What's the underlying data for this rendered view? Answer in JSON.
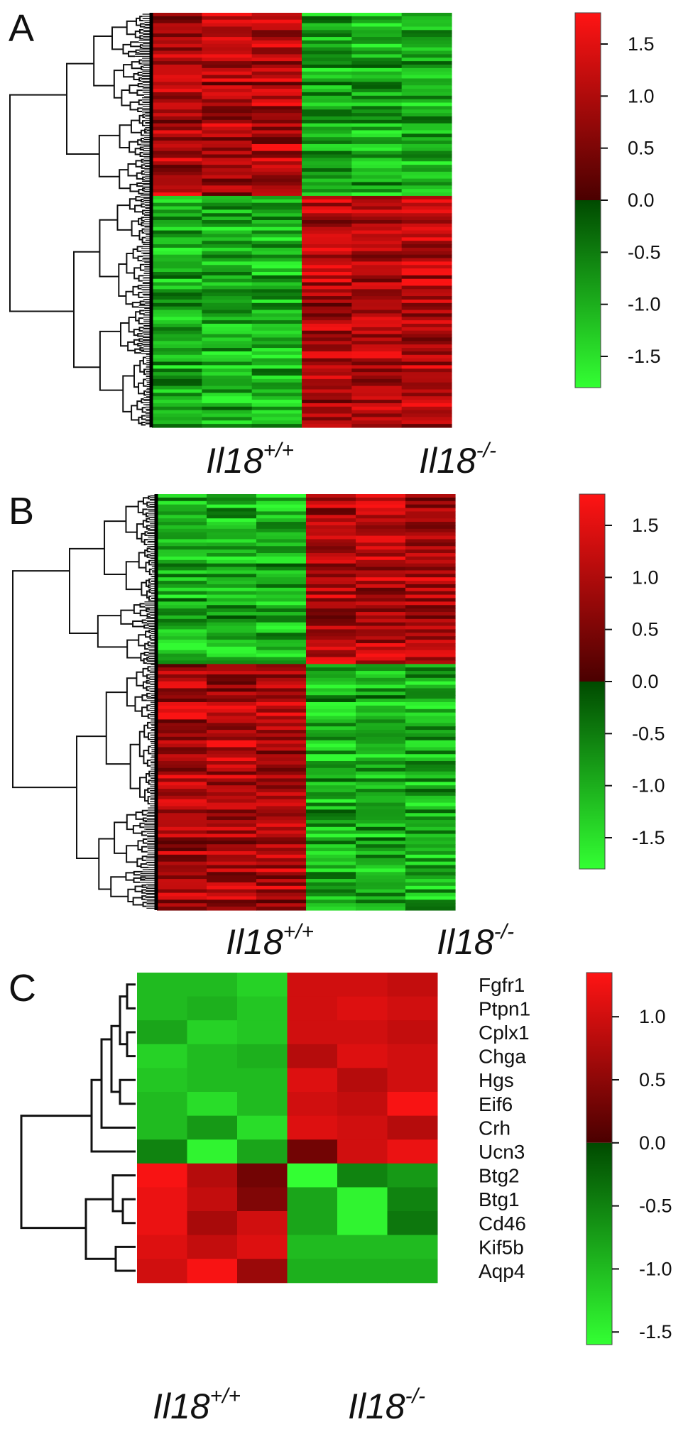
{
  "chart_data": [
    {
      "type": "heatmap",
      "panel": "A",
      "columns": 6,
      "rows": 120,
      "split_fraction": 0.44,
      "pattern": {
        "top_block": [
          "up",
          "up",
          "up",
          "down",
          "down",
          "down"
        ],
        "bottom_block": [
          "down",
          "down",
          "down",
          "up",
          "up",
          "up"
        ]
      },
      "groups": [
        {
          "main": "Il18",
          "sup": "+/+"
        },
        {
          "main": "Il18",
          "sup": "-/-"
        }
      ],
      "colorbar": {
        "range": [
          -1.8,
          1.8
        ],
        "ticks": [
          "1.5",
          "1.0",
          "0.5",
          "0.0",
          "-0.5",
          "-1.0",
          "-1.5"
        ],
        "tick_values": [
          1.5,
          1.0,
          0.5,
          0.0,
          -0.5,
          -1.0,
          -1.5
        ],
        "colors": {
          "high": "#ff1414",
          "mid_high": "#4a0000",
          "mid_low": "#004a00",
          "low": "#33ff33"
        }
      }
    },
    {
      "type": "heatmap",
      "panel": "B",
      "columns": 6,
      "rows": 120,
      "split_fraction": 0.41,
      "pattern": {
        "top_block": [
          "down",
          "down",
          "down",
          "up",
          "up",
          "up"
        ],
        "bottom_block": [
          "up",
          "up",
          "up",
          "down",
          "down",
          "down"
        ]
      },
      "groups": [
        {
          "main": "Il18",
          "sup": "+/+"
        },
        {
          "main": "Il18",
          "sup": "-/-"
        }
      ],
      "colorbar": {
        "range": [
          -1.8,
          1.8
        ],
        "ticks": [
          "1.5",
          "1.0",
          "0.5",
          "0.0",
          "-0.5",
          "-1.0",
          "-1.5"
        ],
        "tick_values": [
          1.5,
          1.0,
          0.5,
          0.0,
          -0.5,
          -1.0,
          -1.5
        ],
        "colors": {
          "high": "#ff1414",
          "mid_high": "#4a0000",
          "mid_low": "#004a00",
          "low": "#33ff33"
        }
      }
    },
    {
      "type": "heatmap",
      "panel": "C",
      "genes": [
        "Fgfr1",
        "Ptpn1",
        "Cplx1",
        "Chga",
        "Hgs",
        "Eif6",
        "Crh",
        "Ucn3",
        "Btg2",
        "Btg1",
        "Cd46",
        "Kif5b",
        "Aqp4"
      ],
      "groups": [
        {
          "main": "Il18",
          "sup": "+/+"
        },
        {
          "main": "Il18",
          "sup": "-/-"
        }
      ],
      "values": [
        [
          -1.0,
          -1.0,
          -1.2,
          1.0,
          1.0,
          0.9
        ],
        [
          -1.0,
          -0.9,
          -1.1,
          1.0,
          1.1,
          1.0
        ],
        [
          -0.8,
          -1.2,
          -1.1,
          1.0,
          1.0,
          0.9
        ],
        [
          -1.2,
          -1.0,
          -0.9,
          0.8,
          1.1,
          1.0
        ],
        [
          -1.1,
          -1.0,
          -1.0,
          1.1,
          0.8,
          1.0
        ],
        [
          -1.0,
          -1.3,
          -1.0,
          1.0,
          0.9,
          1.3
        ],
        [
          -1.0,
          -0.7,
          -1.3,
          1.1,
          1.0,
          0.8
        ],
        [
          -0.5,
          -1.5,
          -0.8,
          0.3,
          1.0,
          1.2
        ],
        [
          1.3,
          0.8,
          0.3,
          -1.6,
          -0.5,
          -0.7
        ],
        [
          1.2,
          0.9,
          0.4,
          -0.8,
          -1.5,
          -0.5
        ],
        [
          1.2,
          0.7,
          1.0,
          -0.8,
          -1.5,
          -0.4
        ],
        [
          1.1,
          0.9,
          1.1,
          -1.0,
          -1.0,
          -1.0
        ],
        [
          1.0,
          1.3,
          0.6,
          -0.9,
          -0.9,
          -0.9
        ]
      ],
      "colorbar": {
        "range": [
          -1.6,
          1.35
        ],
        "ticks": [
          "1.0",
          "0.5",
          "0.0",
          "-0.5",
          "-1.0",
          "-1.5"
        ],
        "tick_values": [
          1.0,
          0.5,
          0.0,
          -0.5,
          -1.0,
          -1.5
        ],
        "colors": {
          "high": "#ff1414",
          "mid_high": "#4a0000",
          "mid_low": "#004a00",
          "low": "#33ff33"
        }
      }
    }
  ]
}
